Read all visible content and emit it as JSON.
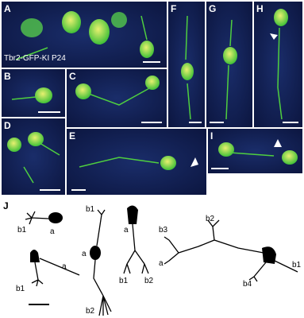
{
  "panels": [
    {
      "label": "A",
      "caption": "Tbr2-GFP-KI P24"
    },
    {
      "label": "B"
    },
    {
      "label": "C"
    },
    {
      "label": "D"
    },
    {
      "label": "E"
    },
    {
      "label": "F"
    },
    {
      "label": "G"
    },
    {
      "label": "H"
    },
    {
      "label": "I"
    }
  ],
  "tracing": {
    "label": "J",
    "labels": [
      "b1",
      "a",
      "a",
      "b1",
      "b1",
      "a",
      "b2",
      "a",
      "b1",
      "b2",
      "b1",
      "b3",
      "b2",
      "a",
      "b4"
    ]
  }
}
